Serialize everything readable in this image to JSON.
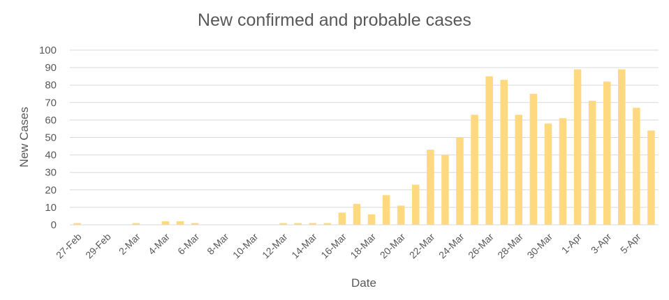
{
  "chart_data": {
    "type": "bar",
    "title": "New confirmed and probable cases",
    "xlabel": "Date",
    "ylabel": "New Cases",
    "ylim": [
      0,
      100
    ],
    "yticks": [
      0,
      10,
      20,
      30,
      40,
      50,
      60,
      70,
      80,
      90,
      100
    ],
    "grid": true,
    "legend": "none",
    "bar_color": "#FFD97F",
    "categories": [
      "27-Feb",
      "28-Feb",
      "29-Feb",
      "1-Mar",
      "2-Mar",
      "3-Mar",
      "4-Mar",
      "5-Mar",
      "6-Mar",
      "7-Mar",
      "8-Mar",
      "9-Mar",
      "10-Mar",
      "11-Mar",
      "12-Mar",
      "13-Mar",
      "14-Mar",
      "15-Mar",
      "16-Mar",
      "17-Mar",
      "18-Mar",
      "19-Mar",
      "20-Mar",
      "21-Mar",
      "22-Mar",
      "23-Mar",
      "24-Mar",
      "25-Mar",
      "26-Mar",
      "27-Mar",
      "28-Mar",
      "29-Mar",
      "30-Mar",
      "31-Mar",
      "1-Apr",
      "2-Apr",
      "3-Apr",
      "4-Apr",
      "5-Apr",
      "6-Apr"
    ],
    "x_tick_labels": [
      "27-Feb",
      "29-Feb",
      "2-Mar",
      "4-Mar",
      "6-Mar",
      "8-Mar",
      "10-Mar",
      "12-Mar",
      "14-Mar",
      "16-Mar",
      "18-Mar",
      "20-Mar",
      "22-Mar",
      "24-Mar",
      "26-Mar",
      "28-Mar",
      "30-Mar",
      "1-Apr",
      "3-Apr",
      "5-Apr"
    ],
    "values": [
      1,
      0,
      0,
      0,
      1,
      0,
      2,
      2,
      1,
      0,
      0,
      0,
      0,
      0,
      1,
      1,
      1,
      1,
      7,
      12,
      6,
      17,
      11,
      23,
      43,
      40,
      50,
      63,
      85,
      83,
      63,
      75,
      58,
      61,
      89,
      71,
      82,
      89,
      67,
      54
    ]
  }
}
